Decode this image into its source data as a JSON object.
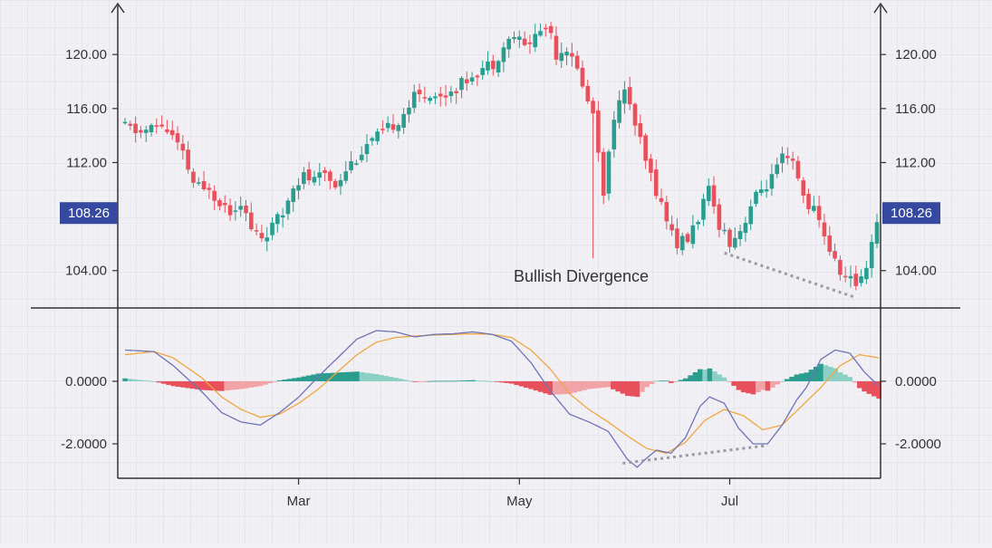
{
  "chart_data": [
    {
      "type": "candlestick",
      "y_ticks": [
        "120.00",
        "116.00",
        "112.00",
        "104.00"
      ],
      "y_tick_values": [
        120,
        116,
        112,
        104
      ],
      "ylim": [
        101.5,
        123.5
      ],
      "last_price_label": "108.26",
      "last_price": 108.26,
      "x_labels": [
        "Mar",
        "May",
        "Jul"
      ],
      "x_label_index": [
        33,
        75,
        115
      ],
      "candle_count": 144,
      "anchors": [
        [
          0,
          114.6
        ],
        [
          3,
          114.2
        ],
        [
          7,
          114.8
        ],
        [
          9,
          113.9
        ],
        [
          11,
          112.5
        ],
        [
          13,
          110.5
        ],
        [
          15,
          109.8
        ],
        [
          16,
          110.3
        ],
        [
          17,
          109.6
        ],
        [
          20,
          108.5
        ],
        [
          22,
          109.2
        ],
        [
          24,
          107.0
        ],
        [
          26,
          106.5
        ],
        [
          28,
          107.2
        ],
        [
          30,
          108.2
        ],
        [
          32,
          110.5
        ],
        [
          34,
          111.0
        ],
        [
          36,
          110.6
        ],
        [
          38,
          111.2
        ],
        [
          40,
          110.4
        ],
        [
          42,
          111.6
        ],
        [
          44,
          112.4
        ],
        [
          46,
          113.3
        ],
        [
          49,
          114.1
        ],
        [
          52,
          115.2
        ],
        [
          55,
          116.8
        ],
        [
          58,
          117.2
        ],
        [
          60,
          116.8
        ],
        [
          62,
          117.4
        ],
        [
          64,
          117.8
        ],
        [
          66,
          118.6
        ],
        [
          68,
          119.0
        ],
        [
          70,
          119.4
        ],
        [
          72,
          120.6
        ],
        [
          74,
          121.4
        ],
        [
          76,
          120.6
        ],
        [
          78,
          121.4
        ],
        [
          80,
          122.1
        ],
        [
          81,
          121.6
        ],
        [
          82,
          120.1
        ],
        [
          84,
          120.6
        ],
        [
          85,
          119.5
        ],
        [
          87,
          118.0
        ],
        [
          88,
          116.4
        ],
        [
          89,
          115.8
        ],
        [
          90,
          113.0
        ],
        [
          91,
          110.0
        ],
        [
          92,
          112.5
        ],
        [
          93,
          115.6
        ],
        [
          95,
          117.1
        ],
        [
          96,
          116.5
        ],
        [
          97,
          114.8
        ],
        [
          99,
          112.0
        ],
        [
          101,
          110.0
        ],
        [
          103,
          107.8
        ],
        [
          105,
          106.0
        ],
        [
          107,
          106.3
        ],
        [
          109,
          108.0
        ],
        [
          111,
          109.8
        ],
        [
          113,
          107.5
        ],
        [
          115,
          106.2
        ],
        [
          117,
          107.0
        ],
        [
          119,
          108.8
        ],
        [
          121,
          110.0
        ],
        [
          123,
          110.8
        ],
        [
          125,
          112.2
        ],
        [
          127,
          111.8
        ],
        [
          129,
          109.5
        ],
        [
          131,
          108.4
        ],
        [
          133,
          106.7
        ],
        [
          135,
          104.5
        ],
        [
          137,
          103.5
        ],
        [
          139,
          103.0
        ],
        [
          141,
          104.5
        ],
        [
          143,
          107.8
        ]
      ],
      "annotation": "Bullish Divergence",
      "divergence_line": {
        "from": [
          114,
          105.3
        ],
        "to": [
          139,
          102.0
        ]
      }
    },
    {
      "type": "macd",
      "y_ticks": [
        "0.0000",
        "-2.0000"
      ],
      "y_tick_values": [
        0,
        -2
      ],
      "ylim": [
        -3.1,
        2.2
      ],
      "macd_anchors": [
        [
          0,
          1.0
        ],
        [
          6,
          0.95
        ],
        [
          10,
          0.5
        ],
        [
          16,
          -0.35
        ],
        [
          20,
          -1.0
        ],
        [
          24,
          -1.3
        ],
        [
          28,
          -1.4
        ],
        [
          32,
          -1.0
        ],
        [
          36,
          -0.5
        ],
        [
          40,
          0.15
        ],
        [
          44,
          0.75
        ],
        [
          48,
          1.35
        ],
        [
          52,
          1.62
        ],
        [
          56,
          1.58
        ],
        [
          60,
          1.42
        ],
        [
          64,
          1.5
        ],
        [
          68,
          1.52
        ],
        [
          72,
          1.58
        ],
        [
          76,
          1.5
        ],
        [
          80,
          1.28
        ],
        [
          84,
          0.6
        ],
        [
          88,
          -0.3
        ],
        [
          92,
          -1.05
        ],
        [
          96,
          -1.3
        ],
        [
          100,
          -1.6
        ],
        [
          104,
          -2.5
        ],
        [
          106,
          -2.75
        ],
        [
          108,
          -2.45
        ],
        [
          110,
          -2.2
        ],
        [
          113,
          -2.3
        ],
        [
          116,
          -1.8
        ],
        [
          119,
          -0.8
        ],
        [
          121,
          -0.5
        ],
        [
          124,
          -0.7
        ],
        [
          127,
          -1.5
        ],
        [
          130,
          -2.0
        ],
        [
          133,
          -2.0
        ],
        [
          136,
          -1.4
        ],
        [
          139,
          -0.6
        ],
        [
          141,
          -0.2
        ],
        [
          144,
          0.7
        ],
        [
          147,
          1.0
        ],
        [
          150,
          0.9
        ],
        [
          153,
          0.3
        ],
        [
          156,
          -0.15
        ]
      ],
      "signal_anchors": [
        [
          0,
          0.85
        ],
        [
          6,
          0.95
        ],
        [
          10,
          0.75
        ],
        [
          16,
          0.1
        ],
        [
          20,
          -0.5
        ],
        [
          24,
          -0.9
        ],
        [
          28,
          -1.15
        ],
        [
          32,
          -1.05
        ],
        [
          36,
          -0.7
        ],
        [
          40,
          -0.25
        ],
        [
          44,
          0.3
        ],
        [
          48,
          0.85
        ],
        [
          52,
          1.25
        ],
        [
          56,
          1.4
        ],
        [
          60,
          1.45
        ],
        [
          64,
          1.48
        ],
        [
          68,
          1.5
        ],
        [
          72,
          1.52
        ],
        [
          76,
          1.5
        ],
        [
          80,
          1.4
        ],
        [
          84,
          1.0
        ],
        [
          88,
          0.4
        ],
        [
          92,
          -0.4
        ],
        [
          96,
          -0.9
        ],
        [
          100,
          -1.3
        ],
        [
          104,
          -1.75
        ],
        [
          108,
          -2.15
        ],
        [
          112,
          -2.3
        ],
        [
          116,
          -1.95
        ],
        [
          120,
          -1.25
        ],
        [
          124,
          -0.9
        ],
        [
          128,
          -1.1
        ],
        [
          132,
          -1.55
        ],
        [
          136,
          -1.4
        ],
        [
          140,
          -0.8
        ],
        [
          144,
          -0.2
        ],
        [
          148,
          0.5
        ],
        [
          152,
          0.85
        ],
        [
          156,
          0.75
        ]
      ],
      "histogram_ratio": 0.62,
      "divergence_line": {
        "from": [
          103,
          -2.62
        ],
        "to": [
          133,
          -2.05
        ]
      }
    }
  ],
  "colors": {
    "bull": "#2a9d8f",
    "bear": "#e8515c",
    "bull_light": "#8ccfc4",
    "bear_light": "#f1a3a7",
    "macd_line": "#6d74b5",
    "signal_line": "#f0a640",
    "price_tag_bg": "#3549a0",
    "axis": "#333333",
    "grid": "#dedde3",
    "divergence": "#9a9aa4"
  }
}
